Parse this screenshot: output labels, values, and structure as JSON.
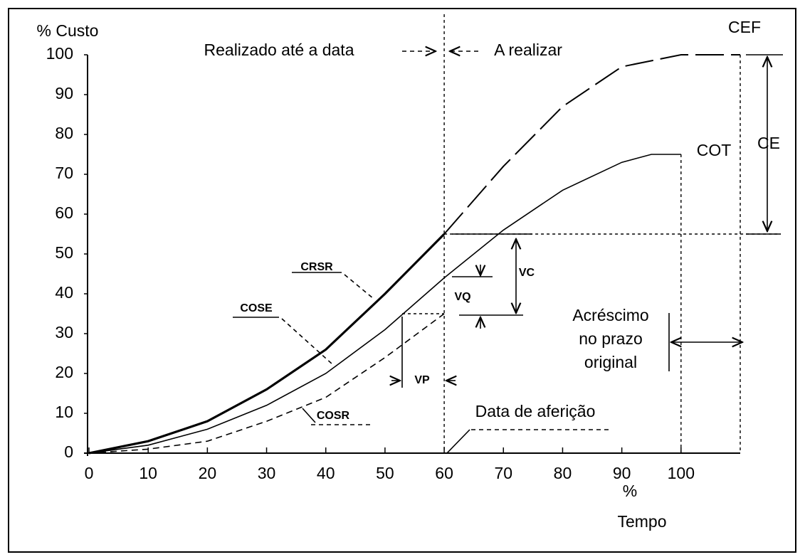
{
  "chart_data": {
    "type": "line",
    "x_label": [
      "%",
      "Tempo"
    ],
    "y_label": "% Custo",
    "xlim": [
      0,
      110
    ],
    "xticks": [
      0,
      10,
      20,
      30,
      40,
      50,
      60,
      70,
      80,
      90,
      100
    ],
    "ylim": [
      0,
      100
    ],
    "yticks": [
      0,
      10,
      20,
      30,
      40,
      50,
      60,
      70,
      80,
      90,
      100
    ],
    "series": [
      {
        "name": "CRSR",
        "color": "#000000",
        "style": "solid",
        "width": 3.2,
        "x": [
          0,
          10,
          20,
          30,
          40,
          50,
          60
        ],
        "values": [
          0,
          3,
          8,
          16,
          26,
          40,
          55
        ]
      },
      {
        "name": "CEF",
        "color": "#000000",
        "style": "longdash",
        "width": 2,
        "x": [
          60,
          70,
          80,
          90,
          100,
          110
        ],
        "values": [
          55,
          72,
          87,
          97,
          100,
          100
        ]
      },
      {
        "name": "COT",
        "color": "#000000",
        "style": "solid",
        "width": 1.6,
        "x": [
          0,
          10,
          20,
          30,
          40,
          50,
          60,
          70,
          80,
          90,
          95,
          100
        ],
        "values": [
          0,
          2,
          6,
          12,
          20,
          31,
          44,
          56,
          66,
          73,
          75,
          75
        ]
      },
      {
        "name": "COSR",
        "color": "#000000",
        "style": "dashed",
        "width": 1.6,
        "x": [
          0,
          10,
          20,
          30,
          40,
          50,
          60
        ],
        "values": [
          0,
          1,
          3,
          8,
          14,
          24,
          35
        ]
      }
    ],
    "annotations": [
      {
        "text": "Realizado até a data"
      },
      {
        "text": "A realizar"
      },
      {
        "text": "CE"
      },
      {
        "text": "VC"
      },
      {
        "text": "VQ"
      },
      {
        "text": "VP"
      },
      {
        "lines": [
          "Acréscimo",
          "no prazo",
          "original"
        ]
      },
      {
        "text": "Data de aferição"
      },
      {
        "text": "COSE"
      }
    ]
  }
}
